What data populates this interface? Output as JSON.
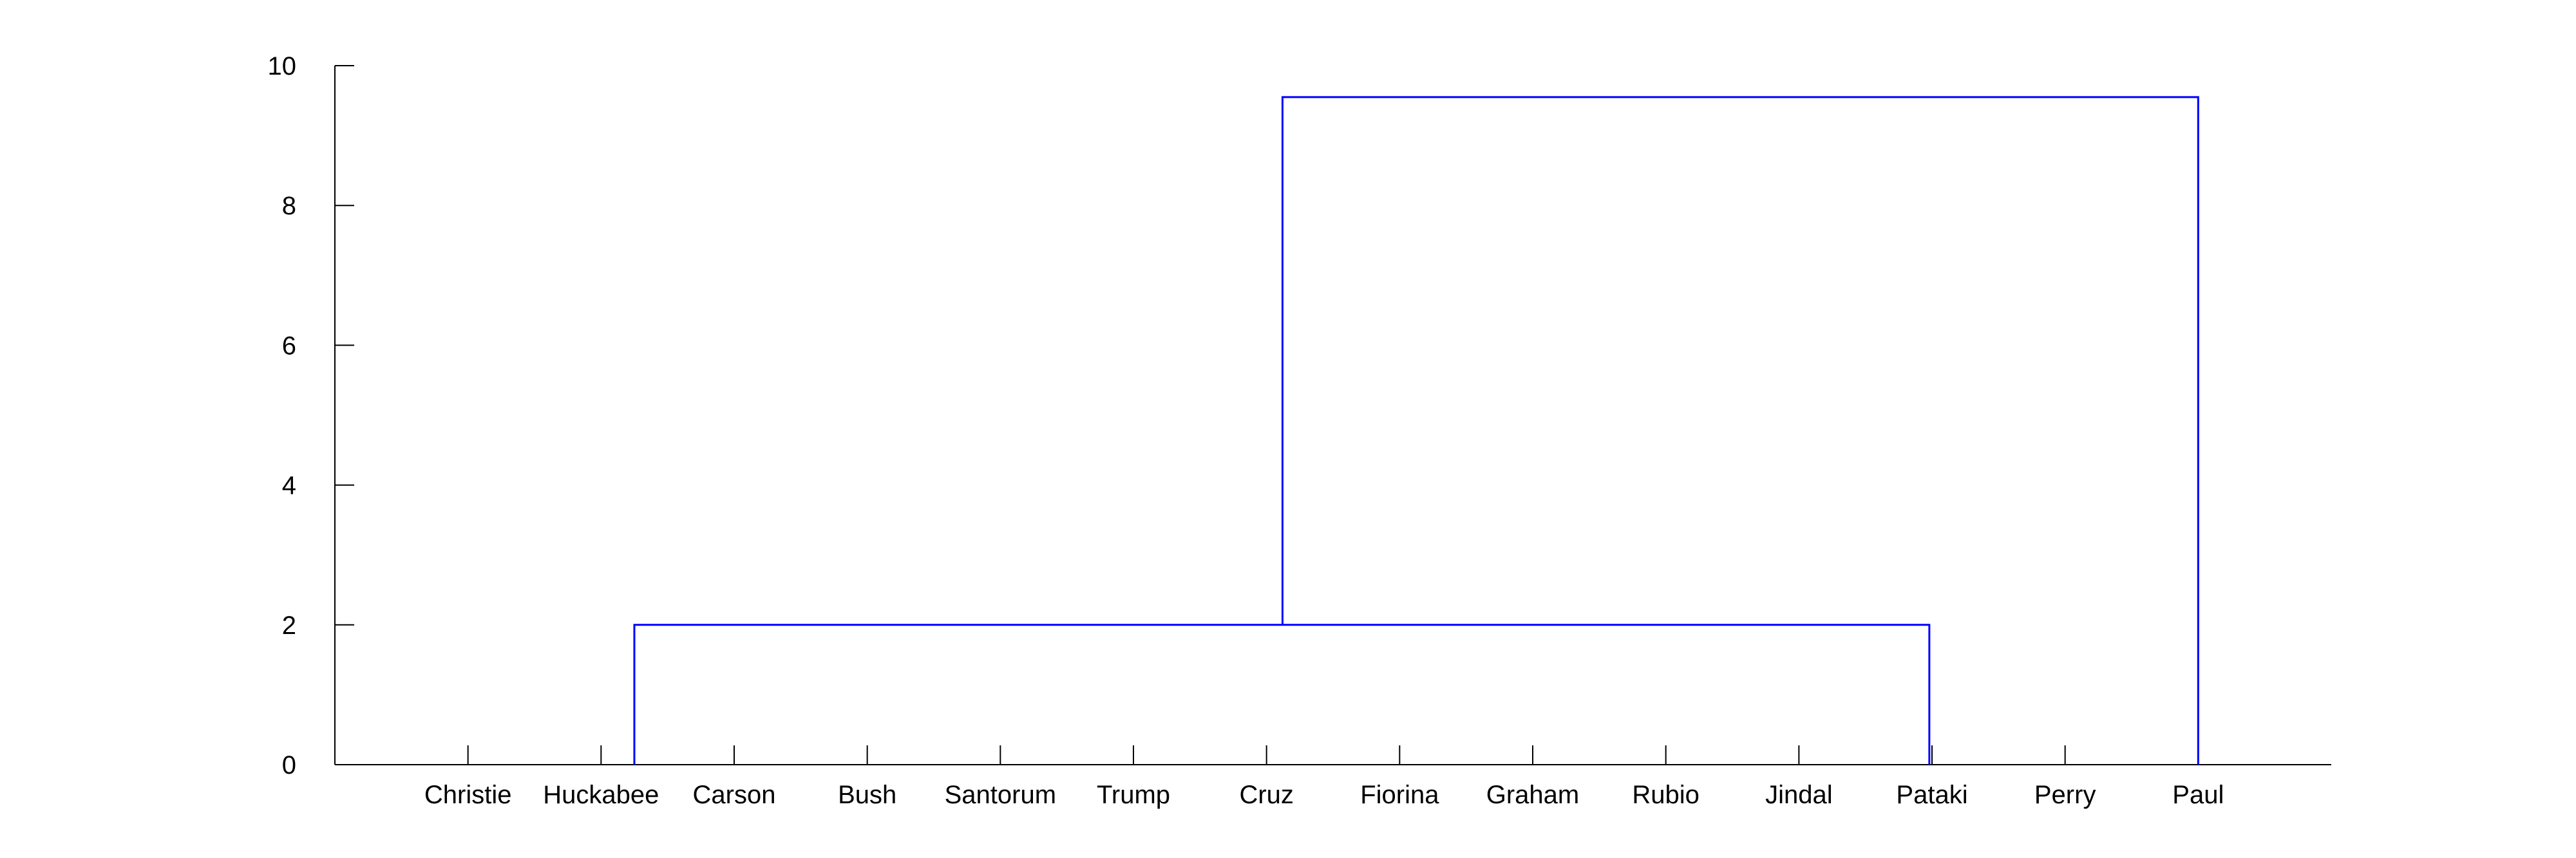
{
  "chart_data": {
    "type": "dendrogram",
    "title": "",
    "xlabel": "",
    "ylabel": "",
    "ylim": [
      0,
      10
    ],
    "yticks": [
      0,
      2,
      4,
      6,
      8,
      10
    ],
    "x_positions": [
      1,
      2,
      3,
      4,
      5,
      6,
      7,
      8,
      9,
      10,
      11,
      12,
      13,
      14
    ],
    "xlim": [
      0,
      15
    ],
    "categories": [
      "Christie",
      "Huckabee",
      "Carson",
      "Bush",
      "Santorum",
      "Trump",
      "Cruz",
      "Fiorina",
      "Graham",
      "Rubio",
      "Jindal",
      "Pataki",
      "Perry",
      "Paul"
    ],
    "link_color": "#0000ff",
    "links": [
      {
        "x_left": 2.25,
        "x_right": 11.98,
        "height": 2.0,
        "left_base": 0,
        "right_base": 0
      },
      {
        "x_left": 7.12,
        "x_right": 14.0,
        "height": 9.55,
        "left_base": 2.0,
        "right_base": 0
      }
    ]
  }
}
